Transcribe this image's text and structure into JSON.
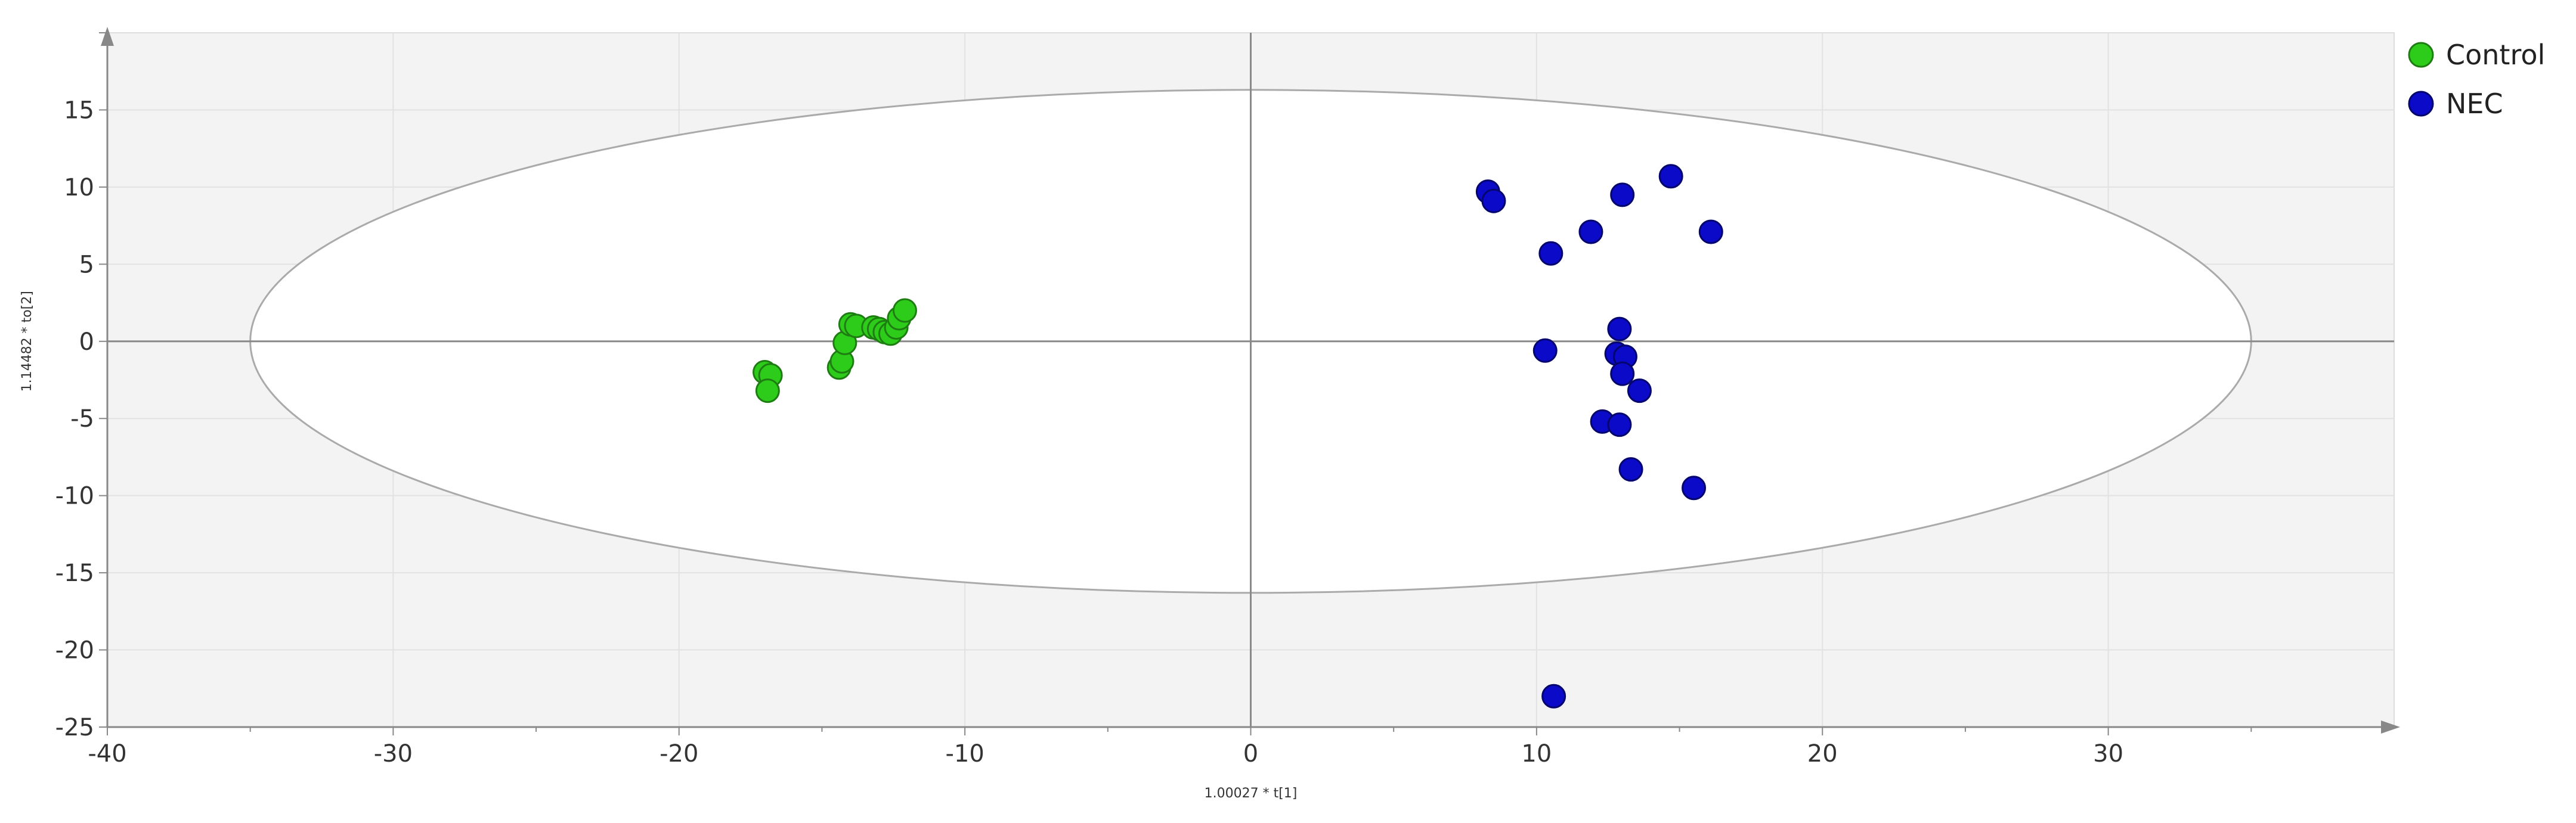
{
  "chart_data": {
    "type": "scatter",
    "title": "",
    "xlabel": "1.00027 * t[1]",
    "ylabel": "1.14482 * to[2]",
    "xlim": [
      -40,
      40
    ],
    "ylim": [
      -25,
      20
    ],
    "xticks": [
      -40,
      -30,
      -20,
      -10,
      0,
      10,
      20,
      30
    ],
    "yticks": [
      -25,
      -20,
      -15,
      -10,
      -5,
      0,
      5,
      10,
      15
    ],
    "grid": true,
    "legend_position": "top-right",
    "ellipse": {
      "cx": 0,
      "cy": 0,
      "rx": 35,
      "ry": 16.3
    },
    "series": [
      {
        "name": "Control",
        "color": "#2ecc1a",
        "edge": "#1e7d12",
        "points": [
          [
            -17.0,
            -2.0
          ],
          [
            -16.8,
            -2.2
          ],
          [
            -16.9,
            -3.2
          ],
          [
            -14.4,
            -1.7
          ],
          [
            -14.3,
            -1.3
          ],
          [
            -14.2,
            -0.1
          ],
          [
            -14.0,
            1.1
          ],
          [
            -13.8,
            1.0
          ],
          [
            -13.2,
            0.9
          ],
          [
            -13.0,
            0.8
          ],
          [
            -12.8,
            0.6
          ],
          [
            -12.6,
            0.5
          ],
          [
            -12.4,
            0.9
          ],
          [
            -12.3,
            1.5
          ],
          [
            -12.1,
            2.0
          ]
        ]
      },
      {
        "name": "NEC",
        "color": "#0a0ac8",
        "edge": "#05056e",
        "points": [
          [
            8.3,
            9.7
          ],
          [
            8.5,
            9.1
          ],
          [
            14.7,
            10.7
          ],
          [
            13.0,
            9.5
          ],
          [
            11.9,
            7.1
          ],
          [
            16.1,
            7.1
          ],
          [
            10.5,
            5.7
          ],
          [
            12.9,
            0.8
          ],
          [
            10.3,
            -0.6
          ],
          [
            12.8,
            -0.8
          ],
          [
            13.1,
            -1.0
          ],
          [
            13.0,
            -2.1
          ],
          [
            13.6,
            -3.2
          ],
          [
            12.3,
            -5.2
          ],
          [
            12.9,
            -5.4
          ],
          [
            13.3,
            -8.3
          ],
          [
            15.5,
            -9.5
          ],
          [
            10.6,
            -23.0
          ]
        ]
      }
    ]
  }
}
